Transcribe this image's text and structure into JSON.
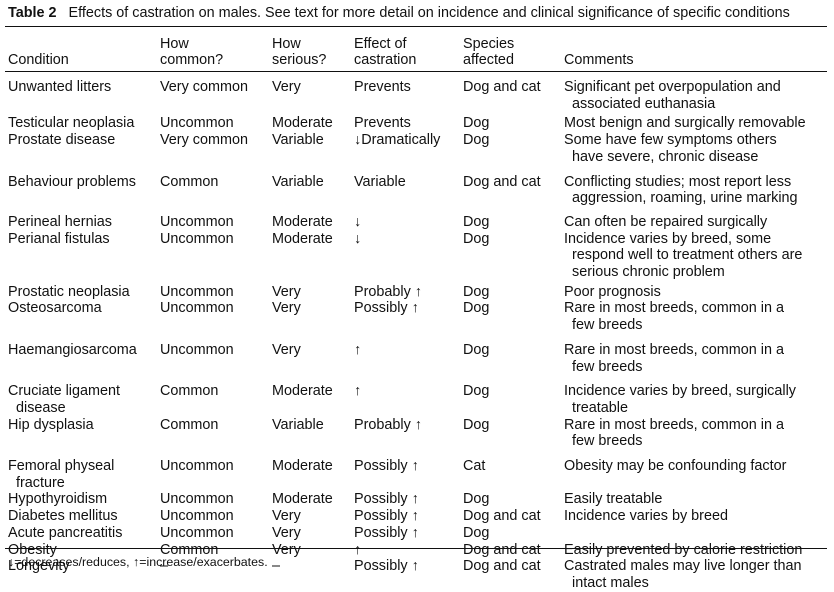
{
  "caption": {
    "label": "Table 2",
    "text": "Effects of castration on males. See text for more detail on incidence and clinical significance of specific conditions"
  },
  "headers": [
    [
      "",
      "Condition"
    ],
    [
      "How",
      "common?"
    ],
    [
      "How",
      "serious?"
    ],
    [
      "Effect of",
      "castration"
    ],
    [
      "Species",
      "affected"
    ],
    [
      "",
      "Comments"
    ]
  ],
  "rows": [
    {
      "gap": 4,
      "condition": [
        "Unwanted litters"
      ],
      "common": "Very common",
      "serious": "Very",
      "effect": "Prevents",
      "species": "Dog and cat",
      "comments": [
        "Significant pet overpopulation and",
        "associated euthanasia"
      ]
    },
    {
      "gap": 6,
      "condition": [
        "Testicular neoplasia"
      ],
      "common": "Uncommon",
      "serious": "Moderate",
      "effect": "Prevents",
      "species": "Dog",
      "comments": [
        "Most benign and surgically removable"
      ]
    },
    {
      "gap": 0,
      "condition": [
        "Prostate disease"
      ],
      "common": "Very common",
      "serious": "Variable",
      "effect": "↓Dramatically",
      "species": "Dog",
      "comments": [
        "Some have few symptoms others",
        "have severe, chronic disease"
      ]
    },
    {
      "gap": 0,
      "condition": [
        "Behaviour problems"
      ],
      "common": "Common",
      "serious": "Variable",
      "effect": "Variable",
      "species": "Dog and cat",
      "comments": [
        "Conflicting studies; most report less",
        "aggression, roaming, urine marking"
      ]
    },
    {
      "gap": 0,
      "condition": [
        "Perineal hernias"
      ],
      "common": "Uncommon",
      "serious": "Moderate",
      "effect": "↓",
      "species": "Dog",
      "comments": [
        "Can often be repaired surgically"
      ]
    },
    {
      "gap": 0,
      "condition": [
        "Perianal fistulas"
      ],
      "common": "Uncommon",
      "serious": "Moderate",
      "effect": "↓",
      "species": "Dog",
      "comments": [
        "Incidence varies by breed, some",
        "respond well to treatment others are",
        "serious chronic problem"
      ]
    },
    {
      "gap": 0,
      "condition": [
        "Prostatic neoplasia"
      ],
      "common": "Uncommon",
      "serious": "Very",
      "effect": "Probably ↑",
      "species": "Dog",
      "comments": [
        "Poor prognosis"
      ]
    },
    {
      "gap": 0,
      "condition": [
        "Osteosarcoma"
      ],
      "common": "Uncommon",
      "serious": "Very",
      "effect": "Possibly ↑",
      "species": "Dog",
      "comments": [
        "Rare in most breeds, common in a",
        "few breeds"
      ]
    },
    {
      "gap": 0,
      "condition": [
        "Haemangiosarcoma"
      ],
      "common": "Uncommon",
      "serious": "Very",
      "effect": "↑",
      "species": "Dog",
      "comments": [
        "Rare in most breeds, common in a",
        "few breeds"
      ]
    },
    {
      "gap": 0,
      "condition": [
        "Cruciate ligament",
        "disease"
      ],
      "common": "Common",
      "serious": "Moderate",
      "effect": "↑",
      "species": "Dog",
      "comments": [
        "Incidence varies by breed, surgically",
        "treatable"
      ]
    },
    {
      "gap": 0,
      "condition": [
        "Hip dysplasia"
      ],
      "common": "Common",
      "serious": "Variable",
      "effect": "Probably ↑",
      "species": "Dog",
      "comments": [
        "Rare in most breeds, common in a",
        "few breeds"
      ]
    },
    {
      "gap": 0,
      "condition": [
        "Femoral physeal",
        "fracture"
      ],
      "common": "Uncommon",
      "serious": "Moderate",
      "effect": "Possibly ↑",
      "species": "Cat",
      "comments": [
        "Obesity may be confounding factor"
      ]
    },
    {
      "gap": 0,
      "condition": [
        "Hypothyroidism"
      ],
      "common": "Uncommon",
      "serious": "Moderate",
      "effect": "Possibly ↑",
      "species": "Dog",
      "comments": [
        "Easily treatable"
      ]
    },
    {
      "gap": 0,
      "condition": [
        "Diabetes mellitus"
      ],
      "common": "Uncommon",
      "serious": "Very",
      "effect": "Possibly ↑",
      "species": "Dog and cat",
      "comments": [
        "Incidence varies by breed"
      ]
    },
    {
      "gap": 0,
      "condition": [
        "Acute pancreatitis"
      ],
      "common": "Uncommon",
      "serious": "Very",
      "effect": "Possibly ↑",
      "species": "Dog",
      "comments": [
        ""
      ]
    },
    {
      "gap": 0,
      "condition": [
        "Obesity"
      ],
      "common": "Common",
      "serious": "Very",
      "effect": "↑",
      "species": "Dog and cat",
      "comments": [
        "Easily prevented by calorie restriction"
      ]
    },
    {
      "gap": 0,
      "condition": [
        "Longevity"
      ],
      "common": "–",
      "serious": "–",
      "effect": "Possibly ↑",
      "species": "Dog and cat",
      "comments": [
        "Castrated males may live longer than",
        "intact males"
      ]
    }
  ],
  "footnote": "↓=decreases/reduces, ↑=increase/exacerbates."
}
